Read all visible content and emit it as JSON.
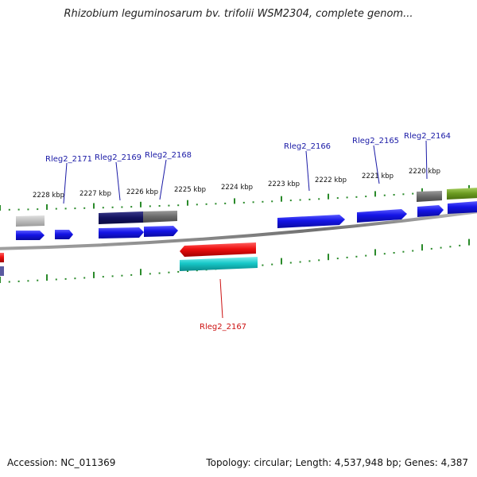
{
  "title": "Rhizobium leguminosarum bv. trifolii WSM2304, complete genom...",
  "footer": {
    "accession": "Accession: NC_011369",
    "topology": "Topology: circular; Length: 4,537,948 bp; Genes: 4,387"
  },
  "scale_labels": [
    "2228 kbp",
    "2227 kbp",
    "2226 kbp",
    "2225 kbp",
    "2224 kbp",
    "2223 kbp",
    "2222 kbp",
    "2221 kbp",
    "2220 kbp"
  ],
  "gene_labels": [
    {
      "id": "g2171",
      "text": "Rleg2_2171",
      "color": "#1a1aa6"
    },
    {
      "id": "g2169",
      "text": "Rleg2_2169",
      "color": "#1a1aa6"
    },
    {
      "id": "g2168",
      "text": "Rleg2_2168",
      "color": "#1a1aa6"
    },
    {
      "id": "g2166",
      "text": "Rleg2_2166",
      "color": "#1a1aa6"
    },
    {
      "id": "g2165",
      "text": "Rleg2_2165",
      "color": "#1a1aa6"
    },
    {
      "id": "g2164",
      "text": "Rleg2_2164",
      "color": "#1a1aa6"
    },
    {
      "id": "g2167",
      "text": "Rleg2_2167",
      "color": "#cc1111"
    }
  ],
  "colors": {
    "blue": "#1010e0",
    "dark_navy": "#101060",
    "gray": "#6e6e6e",
    "light_gray": "#bdbdbd",
    "red": "#e81010",
    "cyan": "#18c8c8",
    "olive": "#6a9a20",
    "tick_green": "#2a8a2a",
    "backbone": "#8a8a8a"
  }
}
